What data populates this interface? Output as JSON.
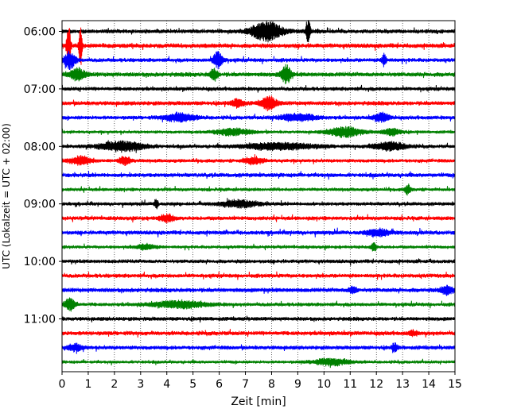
{
  "chart_data": {
    "type": "line",
    "title": "",
    "xlabel": "Zeit  [min]",
    "ylabel": "UTC (Lokalzeit = UTC + 02:00)",
    "xlim": [
      0,
      15
    ],
    "x_ticks": [
      "0",
      "1",
      "2",
      "3",
      "4",
      "5",
      "6",
      "7",
      "8",
      "9",
      "10",
      "11",
      "12",
      "13",
      "14",
      "15"
    ],
    "y_tick_labels": [
      "06:00",
      "07:00",
      "08:00",
      "09:00",
      "10:00",
      "11:00"
    ],
    "grid": "vertical dotted lines at each minute",
    "trace_colors": [
      "#000000",
      "#ff0000",
      "#0000ff",
      "#008000"
    ],
    "traces_count": 24,
    "events": [
      {
        "trace": 0,
        "x": 7.8,
        "amp": 12,
        "width": 0.8
      },
      {
        "trace": 0,
        "x": 9.4,
        "amp": 14,
        "width": 0.12
      },
      {
        "trace": 1,
        "x": 0.25,
        "amp": 28,
        "width": 0.1
      },
      {
        "trace": 1,
        "x": 0.7,
        "amp": 30,
        "width": 0.08
      },
      {
        "trace": 2,
        "x": 0.3,
        "amp": 11,
        "width": 0.3
      },
      {
        "trace": 2,
        "x": 5.95,
        "amp": 10,
        "width": 0.25
      },
      {
        "trace": 2,
        "x": 12.3,
        "amp": 8,
        "width": 0.12
      },
      {
        "trace": 3,
        "x": 0.6,
        "amp": 7,
        "width": 0.4
      },
      {
        "trace": 3,
        "x": 5.8,
        "amp": 7,
        "width": 0.2
      },
      {
        "trace": 3,
        "x": 8.55,
        "amp": 11,
        "width": 0.25
      },
      {
        "trace": 5,
        "x": 6.7,
        "amp": 5,
        "width": 0.3
      },
      {
        "trace": 5,
        "x": 7.9,
        "amp": 8,
        "width": 0.4
      },
      {
        "trace": 6,
        "x": 4.5,
        "amp": 5,
        "width": 0.8
      },
      {
        "trace": 6,
        "x": 9.0,
        "amp": 4,
        "width": 1.0
      },
      {
        "trace": 6,
        "x": 12.2,
        "amp": 5,
        "width": 0.4
      },
      {
        "trace": 7,
        "x": 6.5,
        "amp": 4,
        "width": 1.0
      },
      {
        "trace": 7,
        "x": 10.8,
        "amp": 6,
        "width": 0.9
      },
      {
        "trace": 7,
        "x": 12.6,
        "amp": 4,
        "width": 0.5
      },
      {
        "trace": 8,
        "x": 2.3,
        "amp": 6,
        "width": 1.2
      },
      {
        "trace": 8,
        "x": 8.3,
        "amp": 4,
        "width": 2.0
      },
      {
        "trace": 8,
        "x": 12.5,
        "amp": 5,
        "width": 0.9
      },
      {
        "trace": 9,
        "x": 0.7,
        "amp": 5,
        "width": 0.6
      },
      {
        "trace": 9,
        "x": 2.4,
        "amp": 5,
        "width": 0.3
      },
      {
        "trace": 9,
        "x": 7.3,
        "amp": 4,
        "width": 0.5
      },
      {
        "trace": 11,
        "x": 13.2,
        "amp": 6,
        "width": 0.15
      },
      {
        "trace": 12,
        "x": 6.8,
        "amp": 4,
        "width": 1.0
      },
      {
        "trace": 12,
        "x": 3.6,
        "amp": 6,
        "width": 0.1
      },
      {
        "trace": 13,
        "x": 4.0,
        "amp": 4,
        "width": 0.4
      },
      {
        "trace": 14,
        "x": 12.1,
        "amp": 4,
        "width": 0.6
      },
      {
        "trace": 15,
        "x": 3.2,
        "amp": 3,
        "width": 0.5
      },
      {
        "trace": 15,
        "x": 11.9,
        "amp": 5,
        "width": 0.15
      },
      {
        "trace": 18,
        "x": 11.1,
        "amp": 4,
        "width": 0.2
      },
      {
        "trace": 18,
        "x": 14.7,
        "amp": 6,
        "width": 0.3
      },
      {
        "trace": 19,
        "x": 0.3,
        "amp": 7,
        "width": 0.3
      },
      {
        "trace": 19,
        "x": 4.5,
        "amp": 4,
        "width": 1.4
      },
      {
        "trace": 21,
        "x": 13.4,
        "amp": 3,
        "width": 0.2
      },
      {
        "trace": 22,
        "x": 0.5,
        "amp": 4,
        "width": 0.4
      },
      {
        "trace": 22,
        "x": 12.7,
        "amp": 5,
        "width": 0.15
      },
      {
        "trace": 23,
        "x": 10.3,
        "amp": 4,
        "width": 1.0
      }
    ]
  }
}
